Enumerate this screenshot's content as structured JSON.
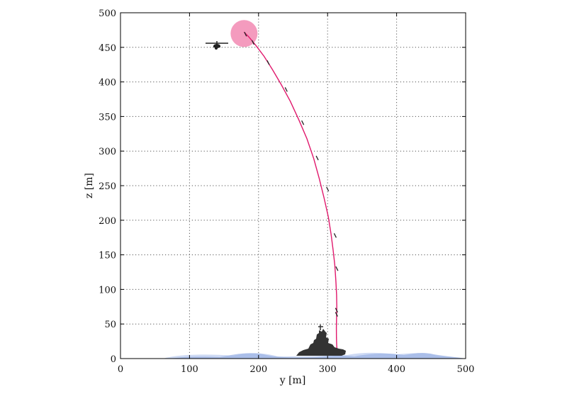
{
  "chart_data": {
    "type": "line",
    "xlabel": "y [m]",
    "ylabel": "z [m]",
    "xlim": [
      0,
      500
    ],
    "ylim": [
      0,
      500
    ],
    "x_ticks": [
      0,
      100,
      200,
      300,
      400,
      500
    ],
    "y_ticks": [
      0,
      50,
      100,
      150,
      200,
      250,
      300,
      350,
      400,
      450,
      500
    ],
    "grid": true,
    "series": [
      {
        "color": "#e0186c",
        "x": [
          179,
          186,
          196,
          208,
          220,
          233,
          246,
          258,
          270,
          280,
          288,
          295,
          301,
          305,
          308,
          310.5,
          312,
          313,
          313.3,
          313,
          312.7,
          312.8,
          313.2,
          314
        ],
        "y": [
          472,
          465,
          453,
          437,
          418,
          396,
          372,
          346,
          318,
          289,
          260,
          232,
          205,
          180,
          157,
          135,
          112,
          92,
          75,
          60,
          45,
          30,
          18,
          10
        ]
      }
    ],
    "trajectory_ticks": {
      "x": [
        181,
        192,
        214,
        240,
        264,
        285,
        300,
        311,
        313.5,
        313,
        313
      ],
      "y": [
        469,
        457,
        428,
        389,
        341,
        290,
        245,
        178,
        130,
        70,
        64
      ]
    },
    "target_circle": {
      "x": 179,
      "y": 470,
      "color": "#f07aa8"
    },
    "helicopter": {
      "x": 140,
      "y": 453,
      "icon": "helicopter-icon"
    },
    "ship": {
      "x": 290,
      "y": 5,
      "icon": "warship-icon"
    },
    "sea": {
      "color": "#9db4e6",
      "icon": "sea-waves"
    }
  }
}
